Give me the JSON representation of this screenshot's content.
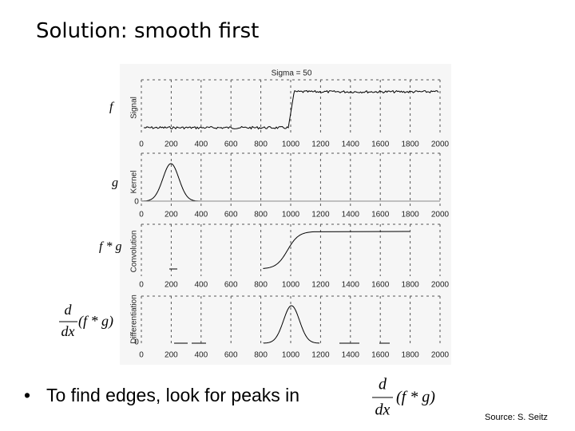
{
  "title": "Solution: smooth first",
  "figure": {
    "caption": "Sigma = 50",
    "xlim": [
      0,
      2000
    ],
    "xticks": [
      0,
      200,
      400,
      600,
      800,
      1000,
      1200,
      1400,
      1600,
      1800,
      2000
    ],
    "panels": [
      {
        "label": "f",
        "ylabel": "Signal"
      },
      {
        "label": "g",
        "ylabel": "Kernel",
        "yticks": [
          0
        ]
      },
      {
        "label": "f * g",
        "ylabel": "Convolution"
      },
      {
        "label": {
          "d": "d",
          "dx": "dx",
          "expr": "(f * g)"
        },
        "ylabel": "Differentiation",
        "yticks": [
          0
        ]
      }
    ]
  },
  "bullet": "To find edges, look for peaks in",
  "formula": {
    "d": "d",
    "dx": "dx",
    "expr": "(f * g)"
  },
  "source": "Source: S. Seitz"
}
